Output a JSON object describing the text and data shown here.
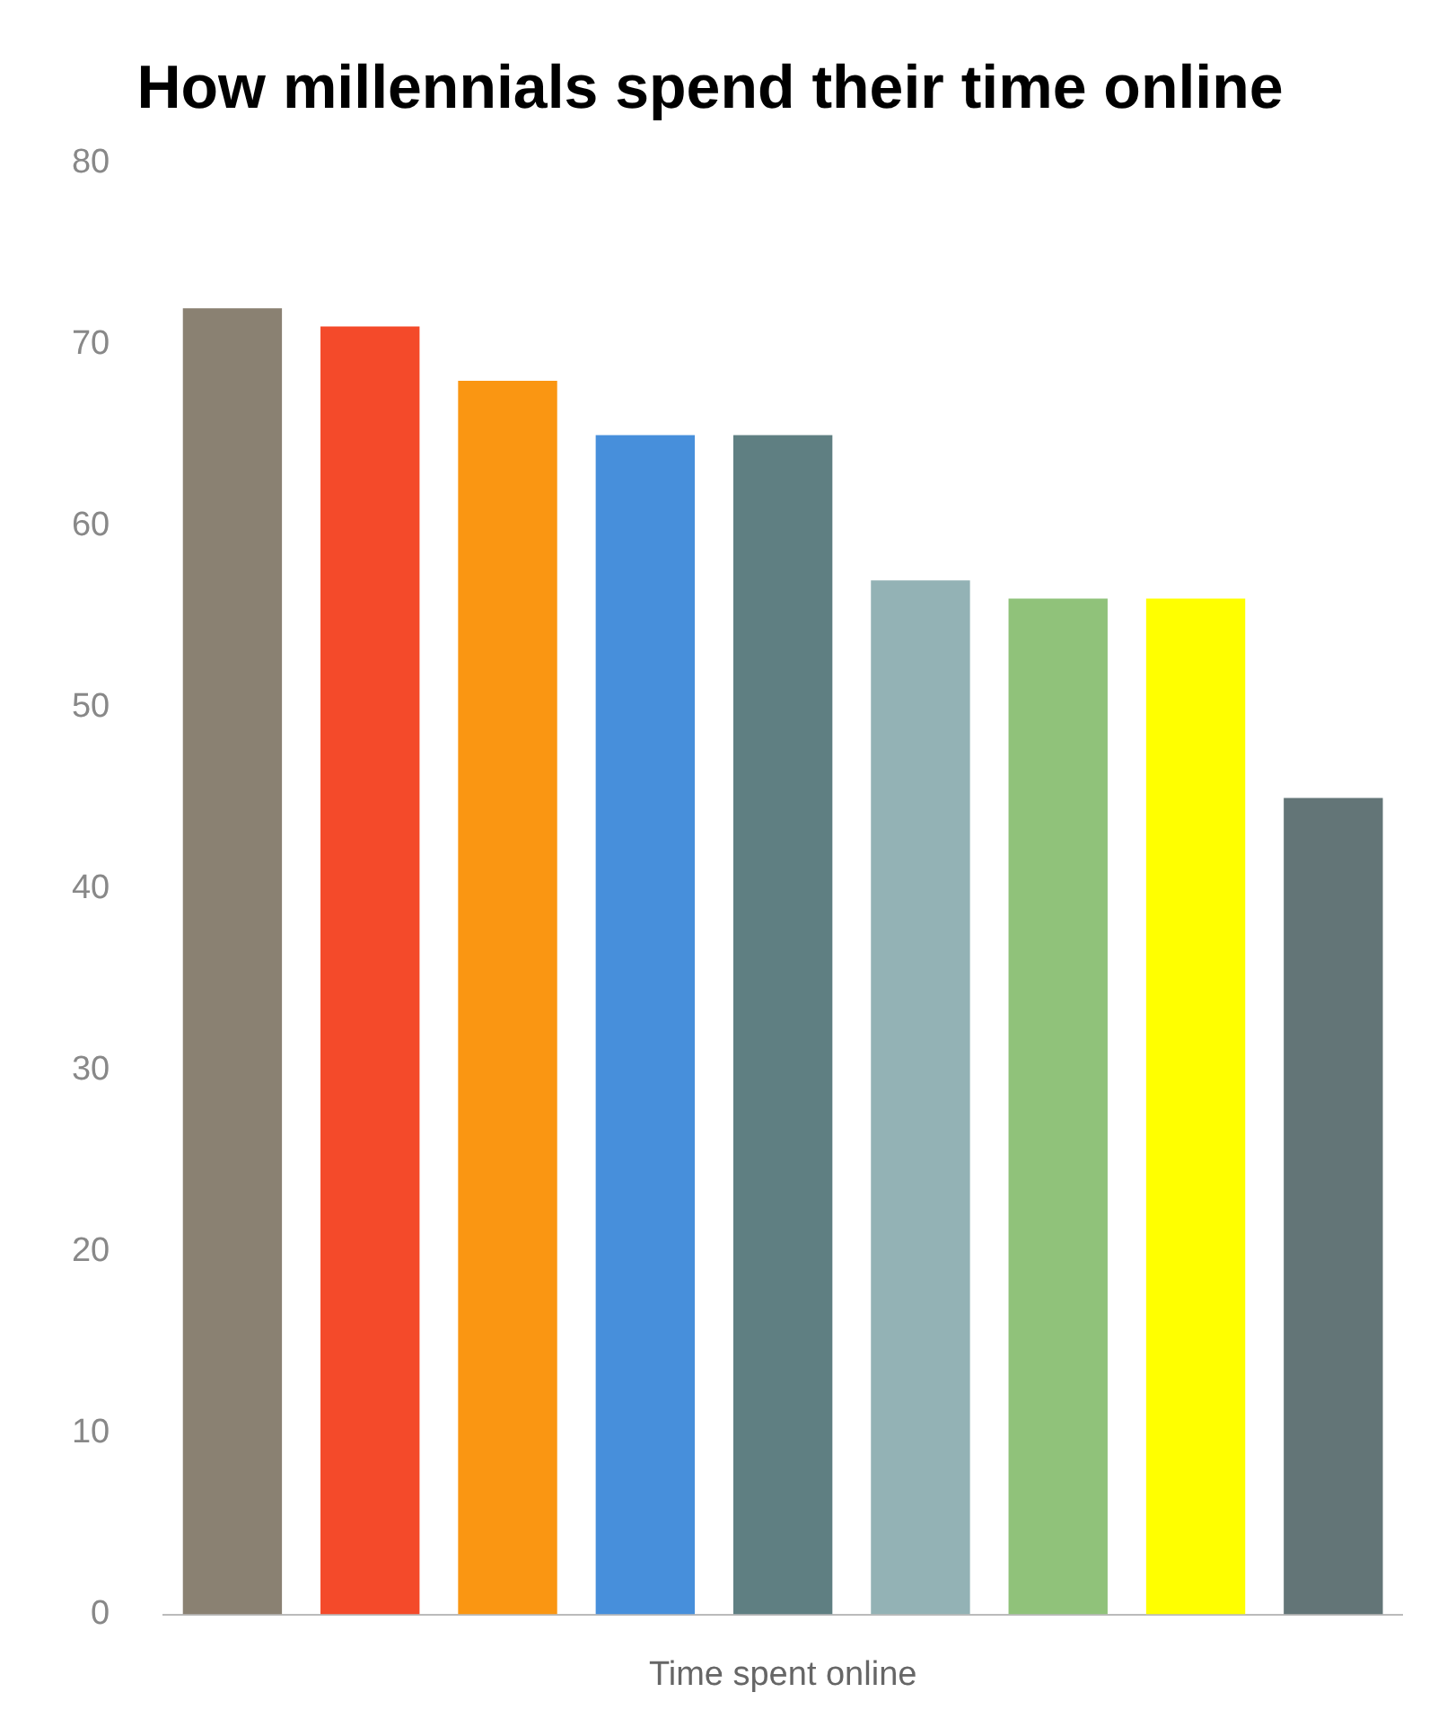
{
  "chart_data": {
    "type": "bar",
    "title": "How millennials spend their time online",
    "xlabel": "Time spent online",
    "categories": [
      null,
      null,
      null,
      null,
      null,
      null,
      null,
      null,
      null
    ],
    "values": [
      72,
      71,
      68,
      65,
      65,
      57,
      56,
      56,
      45
    ],
    "colors": [
      "#8a8172",
      "#f44a2a",
      "#fa9612",
      "#478fdb",
      "#5f7f82",
      "#93b2b5",
      "#90c27a",
      "#ffff00",
      "#637577"
    ],
    "ylim": [
      0,
      80
    ],
    "yticks": [
      0,
      10,
      20,
      30,
      40,
      50,
      60,
      70,
      80
    ],
    "grid": false,
    "legend": false
  }
}
